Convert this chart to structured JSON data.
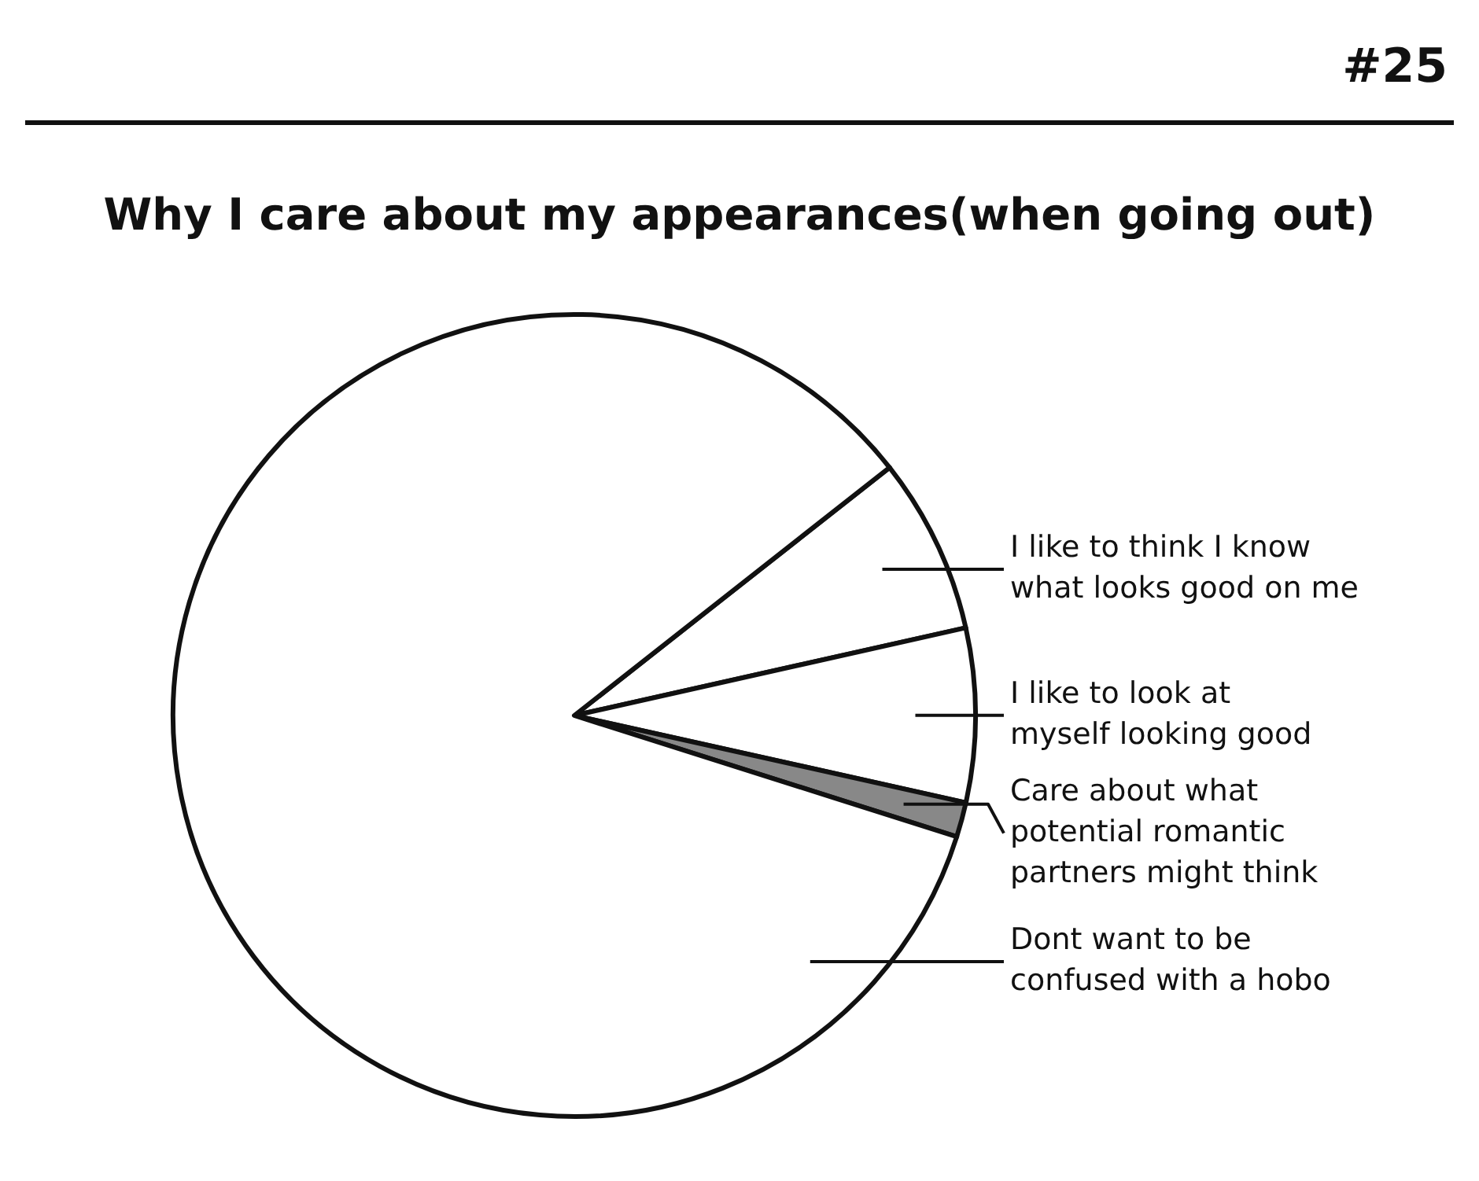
{
  "chart_data": {
    "type": "pie",
    "title": "Why I care about my appearances(when going out)",
    "annotations": [
      "#25"
    ],
    "categories": [
      "I like to think I know what looks good on me",
      "I like to look at myself looking good",
      "Care about what potential romantic partners might think",
      "Dont want to be confused with a hobo"
    ],
    "values": [
      7.1,
      7.0,
      1.4,
      84.5
    ],
    "colors": [
      "#ffffff",
      "#ffffff",
      "#888888",
      "#ffffff"
    ]
  }
}
